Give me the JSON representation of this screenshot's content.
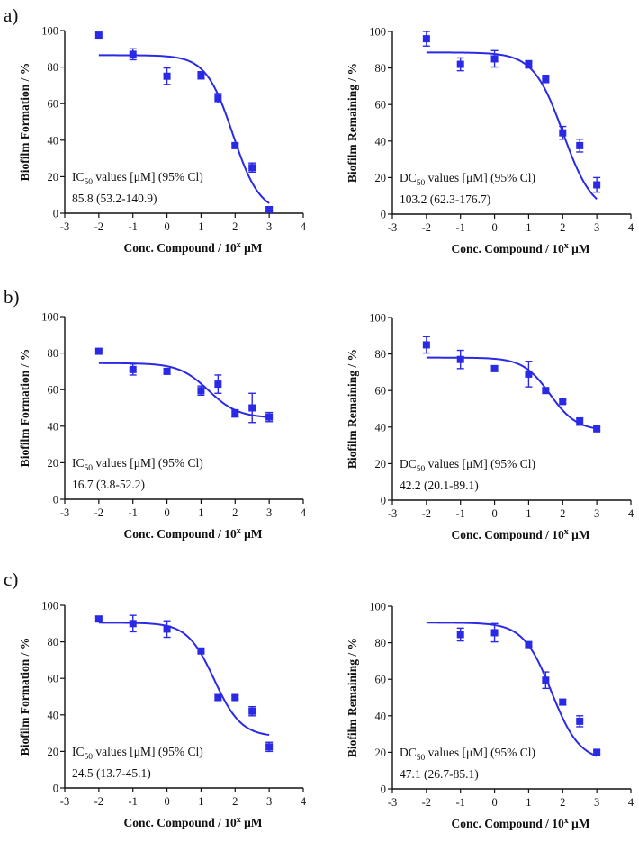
{
  "figure": {
    "row_labels": [
      "a)",
      "b)",
      "c)"
    ],
    "annotation_header": {
      "values_text": " values [μM]",
      "ci_text": "(95% Cl)"
    }
  },
  "chart_data": [
    {
      "id": "a-ic50",
      "type": "scatter",
      "row": "a)",
      "xlabel": "Conc. Compound / 10",
      "xlabel_sup": "x",
      "xlabel_unit": " μM",
      "ylabel": "Biofilm  Formation / %",
      "xlim": [
        -3,
        4
      ],
      "ylim": [
        0,
        100
      ],
      "xticks": [
        -3,
        -2,
        -1,
        0,
        1,
        2,
        3,
        4
      ],
      "yticks": [
        0,
        20,
        40,
        60,
        80,
        100
      ],
      "series": [
        {
          "name": "data",
          "x": [
            -2,
            -1,
            0,
            1,
            1.5,
            2,
            2.5,
            3
          ],
          "y": [
            97.5,
            87,
            75,
            75.5,
            63,
            37,
            25,
            2
          ],
          "error": [
            0,
            3,
            4.5,
            2,
            2.5,
            1,
            2.5,
            1
          ]
        }
      ],
      "fit": {
        "top": 86.5,
        "bottom": 0,
        "log_ec50": 1.933,
        "hill": -1.1
      },
      "annotation": {
        "prefix": "IC",
        "subscript": "50",
        "value": "85.8",
        "ci": "(53.2-140.9)"
      }
    },
    {
      "id": "a-dc50",
      "type": "scatter",
      "row": "a)",
      "xlabel": "Conc. Compound / 10",
      "xlabel_sup": "x",
      "xlabel_unit": " μM",
      "ylabel": "Biofilm  Remaining / %",
      "xlim": [
        -3,
        4
      ],
      "ylim": [
        0,
        100
      ],
      "xticks": [
        -3,
        -2,
        -1,
        0,
        1,
        2,
        3,
        4
      ],
      "yticks": [
        0,
        20,
        40,
        60,
        80,
        100
      ],
      "series": [
        {
          "name": "data",
          "x": [
            -2,
            -1,
            0,
            1,
            1.5,
            2,
            2.5,
            3
          ],
          "y": [
            96,
            82,
            85,
            82,
            74,
            44.5,
            37.5,
            16
          ],
          "error": [
            4,
            3.5,
            4.5,
            2,
            2,
            3.5,
            3.5,
            4
          ]
        }
      ],
      "fit": {
        "top": 88.5,
        "bottom": 0,
        "log_ec50": 2.013,
        "hill": -1.0
      },
      "annotation": {
        "prefix": "DC",
        "subscript": "50",
        "value": "103.2",
        "ci": "(62.3-176.7)"
      }
    },
    {
      "id": "b-ic50",
      "type": "scatter",
      "row": "b)",
      "xlabel": "Conc. Compound / 10",
      "xlabel_sup": "x",
      "xlabel_unit": " μM",
      "ylabel": "Biofilm  Formation / %",
      "xlim": [
        -3,
        4
      ],
      "ylim": [
        0,
        100
      ],
      "xticks": [
        -3,
        -2,
        -1,
        0,
        1,
        2,
        3,
        4
      ],
      "yticks": [
        0,
        20,
        40,
        60,
        80,
        100
      ],
      "series": [
        {
          "name": "data",
          "x": [
            -2,
            -1,
            0,
            1,
            1.5,
            2,
            2.5,
            3
          ],
          "y": [
            81,
            71,
            70,
            59.5,
            63,
            47,
            50,
            45
          ],
          "error": [
            0,
            3,
            1.5,
            2.5,
            5,
            2,
            8,
            2.5
          ]
        }
      ],
      "fit": {
        "top": 74.5,
        "bottom": 44.5,
        "log_ec50": 1.223,
        "hill": -1.0
      },
      "annotation": {
        "prefix": "IC",
        "subscript": "50",
        "value": "16.7",
        "ci": "(3.8-52.2)"
      }
    },
    {
      "id": "b-dc50",
      "type": "scatter",
      "row": "b)",
      "xlabel": "Conc. Compound / 10",
      "xlabel_sup": "x",
      "xlabel_unit": " μM",
      "ylabel": "Biofilm  Remaining / %",
      "xlim": [
        -3,
        4
      ],
      "ylim": [
        0,
        100
      ],
      "xticks": [
        -3,
        -2,
        -1,
        0,
        1,
        2,
        3,
        4
      ],
      "yticks": [
        0,
        20,
        40,
        60,
        80,
        100
      ],
      "series": [
        {
          "name": "data",
          "x": [
            -2,
            -1,
            0,
            1,
            1.5,
            2,
            2.5,
            3
          ],
          "y": [
            85,
            77,
            72,
            69,
            60,
            54,
            43,
            39
          ],
          "error": [
            4.5,
            5,
            1.5,
            7,
            1,
            1,
            2,
            1
          ]
        }
      ],
      "fit": {
        "top": 78,
        "bottom": 38,
        "log_ec50": 1.625,
        "hill": -1.1
      },
      "annotation": {
        "prefix": "DC",
        "subscript": "50",
        "value": "42.2",
        "ci": "(20.1-89.1)"
      }
    },
    {
      "id": "c-ic50",
      "type": "scatter",
      "row": "c)",
      "xlabel": "Conc. Compound / 10",
      "xlabel_sup": "x",
      "xlabel_unit": " μM",
      "ylabel": "Biofilm  Formation / %",
      "xlim": [
        -3,
        4
      ],
      "ylim": [
        0,
        100
      ],
      "xticks": [
        -3,
        -2,
        -1,
        0,
        1,
        2,
        3,
        4
      ],
      "yticks": [
        0,
        20,
        40,
        60,
        80,
        100
      ],
      "series": [
        {
          "name": "data",
          "x": [
            -2,
            -1,
            0,
            1,
            1.5,
            2,
            2.5,
            3
          ],
          "y": [
            92.5,
            90,
            87,
            75,
            49.5,
            49.5,
            42,
            22.5
          ],
          "error": [
            1.5,
            4.5,
            4.5,
            1,
            1.5,
            1,
            2.5,
            2.5
          ]
        }
      ],
      "fit": {
        "top": 90.5,
        "bottom": 28,
        "log_ec50": 1.389,
        "hill": -1.1
      },
      "annotation": {
        "prefix": "IC",
        "subscript": "50",
        "value": "24.5",
        "ci": "(13.7-45.1)"
      }
    },
    {
      "id": "c-dc50",
      "type": "scatter",
      "row": "c)",
      "xlabel": "Conc. Compound / 10",
      "xlabel_sup": "x",
      "xlabel_unit": " μM",
      "ylabel": "Biofilm  Remaining / %",
      "xlim": [
        -3,
        4
      ],
      "ylim": [
        0,
        100
      ],
      "xticks": [
        -3,
        -2,
        -1,
        0,
        1,
        2,
        3,
        4
      ],
      "yticks": [
        0,
        20,
        40,
        60,
        80,
        100
      ],
      "series": [
        {
          "name": "data",
          "x": [
            -1,
            0,
            1,
            1.5,
            2,
            2.5,
            3
          ],
          "y": [
            84.5,
            85.5,
            79,
            59.5,
            47.5,
            37,
            20
          ],
          "error": [
            3.5,
            5,
            1,
            4.5,
            1.5,
            3,
            1
          ]
        }
      ],
      "fit": {
        "top": 91,
        "bottom": 15,
        "log_ec50": 1.673,
        "hill": -1.05
      },
      "annotation": {
        "prefix": "DC",
        "subscript": "50",
        "value": "47.1",
        "ci": "(26.7-85.1)"
      }
    }
  ],
  "colors": {
    "series": "#2a2ae6",
    "axis": "#111111"
  }
}
